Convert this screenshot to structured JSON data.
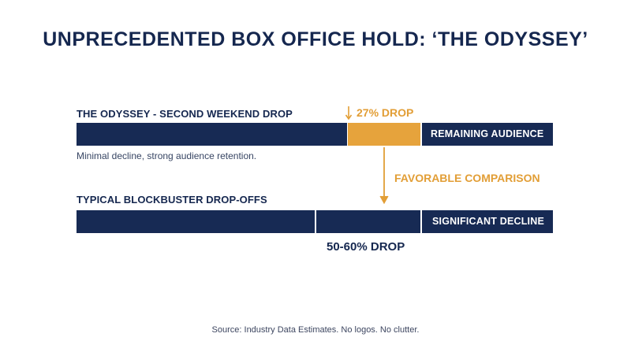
{
  "title": "UNPRECEDENTED BOX OFFICE HOLD: ‘THE ODYSSEY’",
  "odyssey": {
    "label": "THE ODYSSEY - SECOND WEEKEND DROP",
    "drop_label": "27% DROP",
    "remaining_label": "REMAINING AUDIENCE",
    "description": "Minimal decline, strong audience retention."
  },
  "comparison_label": "FAVORABLE COMPARISON",
  "typical": {
    "label": "TYPICAL BLOCKBUSTER DROP-OFFS",
    "decline_label": "SIGNIFICANT DECLINE",
    "drop_label": "50-60% DROP"
  },
  "source": "Source: Industry Data Estimates. No logos. No clutter.",
  "colors": {
    "navy": "#172a54",
    "orange": "#e6a33c"
  }
}
